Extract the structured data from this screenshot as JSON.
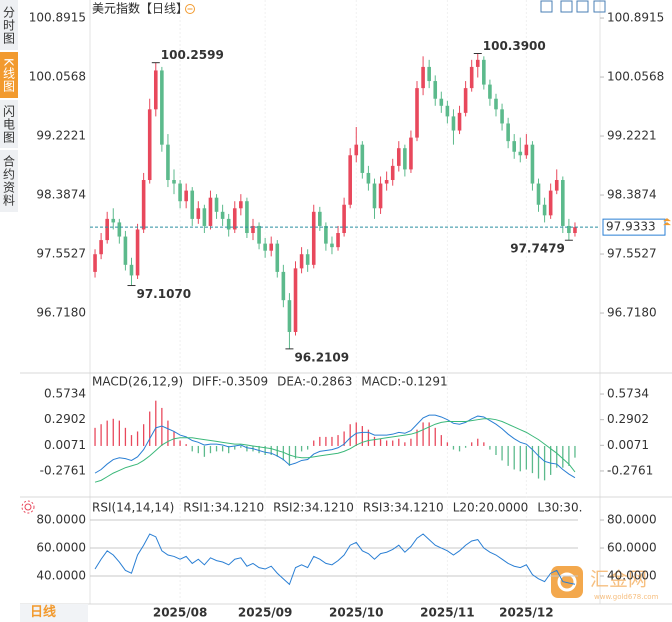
{
  "ui": {
    "tabs": [
      "分时图",
      "K线图",
      "闪电图",
      "合约资料"
    ],
    "period_button": "日线",
    "watermark": "汇金网",
    "watermark_url": "www.gold678.com"
  },
  "chart_data": [
    {
      "type": "candlestick",
      "title": "美元指数",
      "period": "【日线】",
      "up_color": "#e8485c",
      "down_color": "#5cba8c",
      "xlim": [
        -0.5,
        79.5
      ],
      "xticks": [
        {
          "value": 14,
          "label": "2025/08"
        },
        {
          "value": 28,
          "label": "2025/09"
        },
        {
          "value": 43,
          "label": "2025/10"
        },
        {
          "value": 58,
          "label": "2025/11"
        },
        {
          "value": 71,
          "label": "2025/12"
        }
      ],
      "ylim": [
        95.912,
        101.076
      ],
      "yticks": [
        {
          "value": 100.8915,
          "label": "100.8915"
        },
        {
          "value": 100.0568,
          "label": "100.0568"
        },
        {
          "value": 99.2221,
          "label": "99.2221"
        },
        {
          "value": 98.3874,
          "label": "98.3874"
        },
        {
          "value": 97.5527,
          "label": "97.5527"
        },
        {
          "value": 96.718,
          "label": "96.7180"
        }
      ],
      "open": [
        97.3,
        97.55,
        97.75,
        98.05,
        98.0,
        97.8,
        97.4,
        97.25,
        97.9,
        98.6,
        99.6,
        100.15,
        99.1,
        98.6,
        98.55,
        98.3,
        98.45,
        98.05,
        98.2,
        97.95,
        98.35,
        98.15,
        98.05,
        97.9,
        98.2,
        98.3,
        97.85,
        97.95,
        97.7,
        97.6,
        97.7,
        97.3,
        96.9,
        96.45,
        97.35,
        97.55,
        97.4,
        98.15,
        97.95,
        97.7,
        97.65,
        97.85,
        98.25,
        98.95,
        99.1,
        98.7,
        98.55,
        98.2,
        98.55,
        98.6,
        98.8,
        99.05,
        98.75,
        99.2,
        99.9,
        100.2,
        100.0,
        99.75,
        99.65,
        99.5,
        99.3,
        99.55,
        99.9,
        100.2,
        100.3,
        99.95,
        99.75,
        99.6,
        99.4,
        99.15,
        99.0,
        98.95,
        99.1,
        98.55,
        98.25,
        98.1,
        98.45,
        98.6,
        97.95,
        97.85
      ],
      "high": [
        97.62,
        97.85,
        98.15,
        98.2,
        98.05,
        97.88,
        97.5,
        97.98,
        98.7,
        99.75,
        100.2599,
        100.2,
        99.25,
        98.75,
        98.6,
        98.55,
        98.5,
        98.3,
        98.25,
        98.45,
        98.4,
        98.25,
        98.12,
        98.3,
        98.4,
        98.35,
        98.05,
        98.0,
        97.78,
        97.8,
        97.75,
        97.4,
        97.0,
        97.45,
        97.65,
        97.62,
        98.25,
        98.22,
        98.0,
        97.8,
        97.95,
        98.35,
        99.05,
        99.35,
        99.15,
        98.8,
        98.62,
        98.65,
        98.72,
        98.9,
        99.15,
        99.1,
        99.3,
        100.0,
        100.35,
        100.3,
        100.08,
        99.85,
        99.72,
        99.6,
        99.65,
        100.0,
        100.3,
        100.39,
        100.35,
        100.02,
        99.82,
        99.68,
        99.48,
        99.25,
        99.2,
        99.25,
        99.15,
        98.62,
        98.35,
        98.55,
        98.75,
        98.65,
        98.05,
        98.0
      ],
      "low": [
        97.22,
        97.48,
        97.7,
        97.9,
        97.7,
        97.32,
        97.107,
        97.2,
        97.85,
        98.55,
        99.5,
        99.0,
        98.5,
        98.4,
        98.2,
        98.2,
        97.95,
        97.98,
        97.85,
        97.9,
        98.05,
        97.95,
        97.8,
        97.85,
        98.1,
        97.78,
        97.75,
        97.62,
        97.5,
        97.52,
        97.22,
        96.8,
        96.2109,
        96.4,
        97.28,
        97.3,
        97.35,
        97.88,
        97.6,
        97.55,
        97.6,
        97.8,
        98.2,
        98.85,
        98.62,
        98.45,
        98.05,
        98.12,
        98.45,
        98.52,
        98.72,
        98.65,
        98.7,
        99.15,
        99.8,
        99.9,
        99.65,
        99.55,
        99.4,
        99.1,
        99.25,
        99.5,
        99.85,
        100.05,
        99.88,
        99.65,
        99.5,
        99.3,
        99.05,
        98.9,
        98.85,
        98.9,
        98.45,
        98.15,
        98.0,
        98.05,
        98.4,
        97.85,
        97.7479,
        97.8
      ],
      "close": [
        97.55,
        97.75,
        98.05,
        98.0,
        97.8,
        97.4,
        97.25,
        97.9,
        98.6,
        99.6,
        100.15,
        99.1,
        98.6,
        98.55,
        98.3,
        98.45,
        98.05,
        98.2,
        97.95,
        98.35,
        98.15,
        98.05,
        97.9,
        98.2,
        98.3,
        97.85,
        97.95,
        97.7,
        97.6,
        97.7,
        97.3,
        96.9,
        96.45,
        97.35,
        97.55,
        97.4,
        98.15,
        97.95,
        97.7,
        97.65,
        97.85,
        98.25,
        98.95,
        99.1,
        98.7,
        98.55,
        98.2,
        98.55,
        98.6,
        98.8,
        99.05,
        98.75,
        99.2,
        99.9,
        100.2,
        100.0,
        99.75,
        99.65,
        99.5,
        99.3,
        99.55,
        99.9,
        100.2,
        100.3,
        99.95,
        99.75,
        99.6,
        99.4,
        99.15,
        99.0,
        98.95,
        99.1,
        98.55,
        98.25,
        98.1,
        98.45,
        98.6,
        97.95,
        97.85,
        97.9333
      ],
      "last": 97.9333,
      "last_color": "#2a7fd4",
      "annotations": [
        {
          "index": 10,
          "value": 100.2599,
          "label": "100.2599",
          "color": "#e8485c"
        },
        {
          "index": 63,
          "value": 100.39,
          "label": "100.3900",
          "color": "#e8485c"
        },
        {
          "index": 6,
          "value": 97.107,
          "label": "97.1070",
          "color": "#4fb384"
        },
        {
          "index": 32,
          "value": 96.2109,
          "label": "96.2109",
          "color": "#4fb384"
        },
        {
          "index": 78,
          "value": 97.7479,
          "label": "97.7479",
          "color": "#4fb384"
        }
      ]
    },
    {
      "type": "macd",
      "title": "MACD(26,12,9)",
      "up_color": "#e8485c",
      "down_color": "#5cba8c",
      "ylim": [
        -0.5416,
        0.7504
      ],
      "yticks": [
        0.5734,
        0.2902,
        0.0071,
        -0.2761
      ],
      "series": [
        {
          "name": "DIFF:-0.3509",
          "color": "#2a7fd4",
          "values": [
            -0.3,
            -0.26,
            -0.2,
            -0.15,
            -0.13,
            -0.14,
            -0.16,
            -0.12,
            -0.04,
            0.08,
            0.2,
            0.22,
            0.19,
            0.16,
            0.12,
            0.1,
            0.06,
            0.04,
            0.01,
            0.02,
            0.02,
            0.01,
            -0.01,
            0.0,
            0.01,
            -0.02,
            -0.03,
            -0.05,
            -0.07,
            -0.08,
            -0.11,
            -0.15,
            -0.21,
            -0.19,
            -0.16,
            -0.15,
            -0.09,
            -0.06,
            -0.05,
            -0.04,
            -0.02,
            0.02,
            0.09,
            0.14,
            0.15,
            0.15,
            0.12,
            0.12,
            0.12,
            0.13,
            0.15,
            0.14,
            0.17,
            0.24,
            0.31,
            0.34,
            0.34,
            0.32,
            0.29,
            0.25,
            0.24,
            0.26,
            0.3,
            0.33,
            0.32,
            0.28,
            0.24,
            0.19,
            0.13,
            0.08,
            0.04,
            0.02,
            -0.04,
            -0.11,
            -0.17,
            -0.19,
            -0.2,
            -0.26,
            -0.31,
            -0.3509
          ]
        },
        {
          "name": "DEA:-0.2863",
          "color": "#3bb87a",
          "values": [
            -0.4,
            -0.38,
            -0.34,
            -0.3,
            -0.27,
            -0.24,
            -0.22,
            -0.2,
            -0.16,
            -0.11,
            -0.05,
            0.01,
            0.05,
            0.08,
            0.09,
            0.09,
            0.09,
            0.08,
            0.07,
            0.06,
            0.05,
            0.04,
            0.03,
            0.02,
            0.02,
            0.01,
            0.0,
            -0.01,
            -0.02,
            -0.03,
            -0.05,
            -0.07,
            -0.1,
            -0.12,
            -0.13,
            -0.13,
            -0.12,
            -0.11,
            -0.1,
            -0.09,
            -0.08,
            -0.06,
            -0.03,
            0.01,
            0.04,
            0.06,
            0.07,
            0.08,
            0.09,
            0.1,
            0.11,
            0.12,
            0.13,
            0.15,
            0.18,
            0.21,
            0.24,
            0.26,
            0.27,
            0.27,
            0.27,
            0.27,
            0.28,
            0.29,
            0.3,
            0.3,
            0.29,
            0.27,
            0.24,
            0.21,
            0.18,
            0.15,
            0.11,
            0.07,
            0.02,
            -0.03,
            -0.08,
            -0.14,
            -0.2,
            -0.2863
          ]
        },
        {
          "name": "MACD:-0.1291",
          "color": "#2a7fd4",
          "type": "bar",
          "values": [
            0.2,
            0.24,
            0.28,
            0.3,
            0.28,
            0.2,
            0.12,
            0.16,
            0.24,
            0.38,
            0.5,
            0.42,
            0.28,
            0.16,
            0.06,
            0.02,
            -0.06,
            -0.08,
            -0.12,
            -0.08,
            -0.06,
            -0.06,
            -0.08,
            -0.04,
            -0.02,
            -0.06,
            -0.06,
            -0.08,
            -0.1,
            -0.1,
            -0.12,
            -0.16,
            -0.22,
            -0.14,
            -0.06,
            -0.04,
            0.06,
            0.1,
            0.1,
            0.1,
            0.12,
            0.16,
            0.24,
            0.26,
            0.22,
            0.18,
            0.1,
            0.08,
            0.06,
            0.06,
            0.08,
            0.04,
            0.08,
            0.18,
            0.26,
            0.26,
            0.2,
            0.12,
            0.04,
            -0.04,
            -0.06,
            -0.02,
            0.04,
            0.08,
            0.04,
            -0.04,
            -0.1,
            -0.16,
            -0.22,
            -0.26,
            -0.28,
            -0.26,
            -0.3,
            -0.36,
            -0.38,
            -0.32,
            -0.24,
            -0.24,
            -0.22,
            -0.1291
          ]
        }
      ]
    },
    {
      "type": "line",
      "title": "RSI(14,14,14)",
      "grid": true,
      "ylim": [
        19.3,
        94.3
      ],
      "yticks": [
        {
          "value": 80,
          "label": "80.0000"
        },
        {
          "value": 60,
          "label": "60.0000"
        },
        {
          "value": 40,
          "label": "40.0000"
        }
      ],
      "series": [
        {
          "name": "RSI1:34.1210",
          "color": "#2a7fd4",
          "values": [
            45,
            52,
            58,
            55,
            50,
            44,
            42,
            55,
            62,
            70,
            68,
            58,
            55,
            54,
            52,
            54,
            49,
            52,
            48,
            53,
            51,
            50,
            48,
            52,
            53,
            47,
            49,
            46,
            45,
            47,
            42,
            38,
            34,
            46,
            48,
            46,
            54,
            52,
            49,
            48,
            51,
            55,
            62,
            64,
            58,
            56,
            52,
            56,
            57,
            59,
            62,
            57,
            61,
            67,
            70,
            66,
            62,
            60,
            58,
            55,
            58,
            62,
            65,
            66,
            60,
            57,
            55,
            52,
            49,
            47,
            46,
            48,
            41,
            38,
            36,
            42,
            44,
            36,
            35,
            34.121
          ]
        }
      ],
      "legend": [
        {
          "text": "RSI2:34.1210",
          "color": "#3bb87a"
        },
        {
          "text": "RSI3:34.1210",
          "color": "#2a7fd4"
        },
        {
          "text": "L20:20.0000",
          "color": "#aaaaaa"
        },
        {
          "text": "L30:30.",
          "color": "#aaaaaa"
        }
      ]
    }
  ]
}
